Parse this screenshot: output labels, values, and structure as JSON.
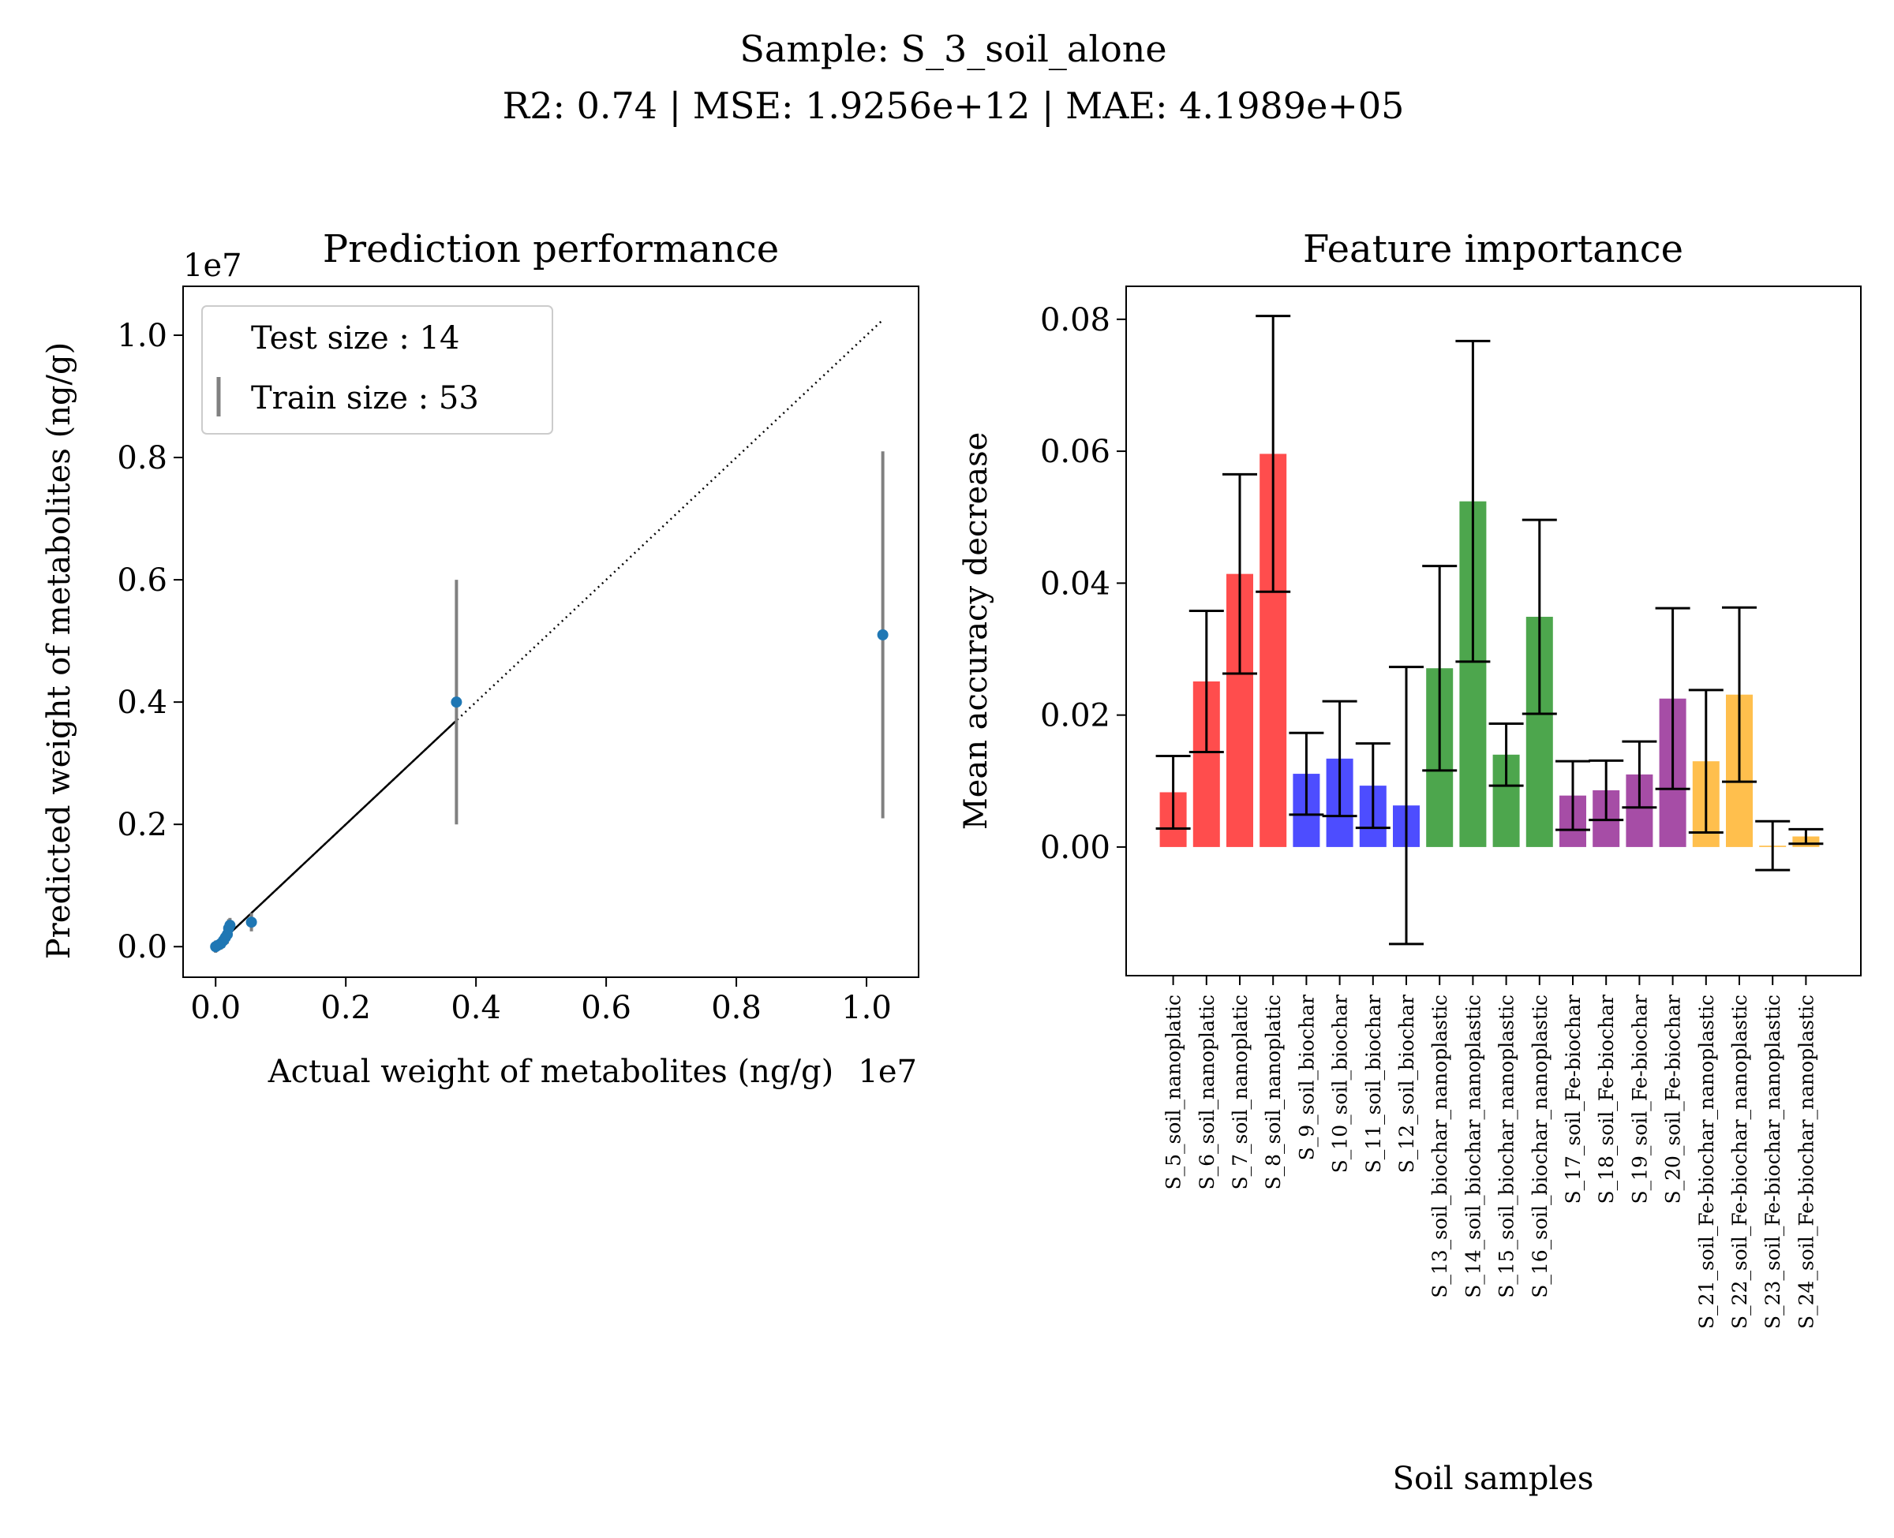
{
  "figure": {
    "suptitle_line1": "Sample: S_3_soil_alone",
    "suptitle_line2": "R2: 0.74 | MSE: 1.9256e+12 | MAE: 4.1989e+05"
  },
  "chart_data": [
    {
      "type": "scatter",
      "title": "Prediction performance",
      "xlabel": "Actual weight of metabolites (ng/g)",
      "ylabel": "Predicted weight of metabolites (ng/g)",
      "x_offset_label": "1e7",
      "y_offset_label": "1e7",
      "xlim": [
        -0.05,
        1.08
      ],
      "ylim": [
        -0.05,
        1.08
      ],
      "xticks": [
        0.0,
        0.2,
        0.4,
        0.6,
        0.8,
        1.0
      ],
      "yticks": [
        0.0,
        0.2,
        0.4,
        0.6,
        0.8,
        1.0
      ],
      "xtick_labels": [
        "0.0",
        "0.2",
        "0.4",
        "0.6",
        "0.8",
        "1.0"
      ],
      "ytick_labels": [
        "0.0",
        "0.2",
        "0.4",
        "0.6",
        "0.8",
        "1.0"
      ],
      "legend": {
        "placement": "upper-left",
        "entries": [
          "Test size : 14",
          "Train size : 53"
        ]
      },
      "identity_line": {
        "from": 0.0,
        "to": 1.025,
        "style": "dotted"
      },
      "fit_line": {
        "from": 0.0,
        "to": 0.37,
        "style": "solid"
      },
      "series": [
        {
          "points": [
            {
              "x": 0.0,
              "y": 0.0,
              "err": 0.01
            },
            {
              "x": 0.003,
              "y": 0.002,
              "err": 0.008
            },
            {
              "x": 0.008,
              "y": 0.005,
              "err": 0.01
            },
            {
              "x": 0.012,
              "y": 0.01,
              "err": 0.012
            },
            {
              "x": 0.015,
              "y": 0.015,
              "err": 0.012
            },
            {
              "x": 0.018,
              "y": 0.02,
              "err": 0.015
            },
            {
              "x": 0.02,
              "y": 0.03,
              "err": 0.015
            },
            {
              "x": 0.022,
              "y": 0.035,
              "err": 0.012
            },
            {
              "x": 0.055,
              "y": 0.04,
              "err": 0.015
            },
            {
              "x": 0.37,
              "y": 0.4,
              "err": 0.2
            },
            {
              "x": 1.025,
              "y": 0.51,
              "err": 0.3
            }
          ]
        }
      ],
      "colors": {
        "points": "#1f77b4",
        "errorbars": "#808080",
        "lines": "#000000"
      }
    },
    {
      "type": "bar",
      "title": "Feature importance",
      "xlabel": "Soil samples",
      "ylabel": "Mean accuracy decrease",
      "ylim": [
        -0.0195,
        0.085
      ],
      "yticks": [
        0.0,
        0.02,
        0.04,
        0.06,
        0.08
      ],
      "ytick_labels": [
        "0.00",
        "0.02",
        "0.04",
        "0.06",
        "0.08"
      ],
      "categories": [
        "S_5_soil_nanoplatic",
        "S_6_soil_nanoplatic",
        "S_7_soil_nanoplatic",
        "S_8_soil_nanoplatic",
        "S_9_soil_biochar",
        "S_10_soil_biochar",
        "S_11_soil_biochar",
        "S_12_soil_biochar",
        "S_13_soil_biochar_nanoplastic",
        "S_14_soil_biochar_nanoplastic",
        "S_15_soil_biochar_nanoplastic",
        "S_16_soil_biochar_nanoplastic",
        "S_17_soil_Fe-biochar",
        "S_18_soil_Fe-biochar",
        "S_19_soil_Fe-biochar",
        "S_20_soil_Fe-biochar",
        "S_21_soil_Fe-biochar_nanoplastic",
        "S_22_soil_Fe-biochar_nanoplastic",
        "S_23_soil_Fe-biochar_nanoplastic",
        "S_24_soil_Fe-biochar_nanoplastic"
      ],
      "values": [
        0.0083,
        0.0251,
        0.0414,
        0.0596,
        0.0111,
        0.0134,
        0.0093,
        0.0063,
        0.0271,
        0.0524,
        0.014,
        0.0349,
        0.0078,
        0.0086,
        0.011,
        0.0225,
        0.013,
        0.0231,
        0.0002,
        0.0016
      ],
      "errors": [
        0.0055,
        0.0107,
        0.0151,
        0.0209,
        0.0062,
        0.0087,
        0.0064,
        0.021,
        0.0155,
        0.0243,
        0.0047,
        0.0147,
        0.0052,
        0.0045,
        0.005,
        0.0137,
        0.0108,
        0.0132,
        0.0037,
        0.0011
      ],
      "bar_colors": [
        "#ff4d4d",
        "#ff4d4d",
        "#ff4d4d",
        "#ff4d4d",
        "#4d4dff",
        "#4d4dff",
        "#4d4dff",
        "#4d4dff",
        "#4da64d",
        "#4da64d",
        "#4da64d",
        "#4da64d",
        "#a64da6",
        "#a64da6",
        "#a64da6",
        "#a64da6",
        "#ffbf4d",
        "#ffbf4d",
        "#ffbf4d",
        "#ffbf4d"
      ]
    }
  ]
}
